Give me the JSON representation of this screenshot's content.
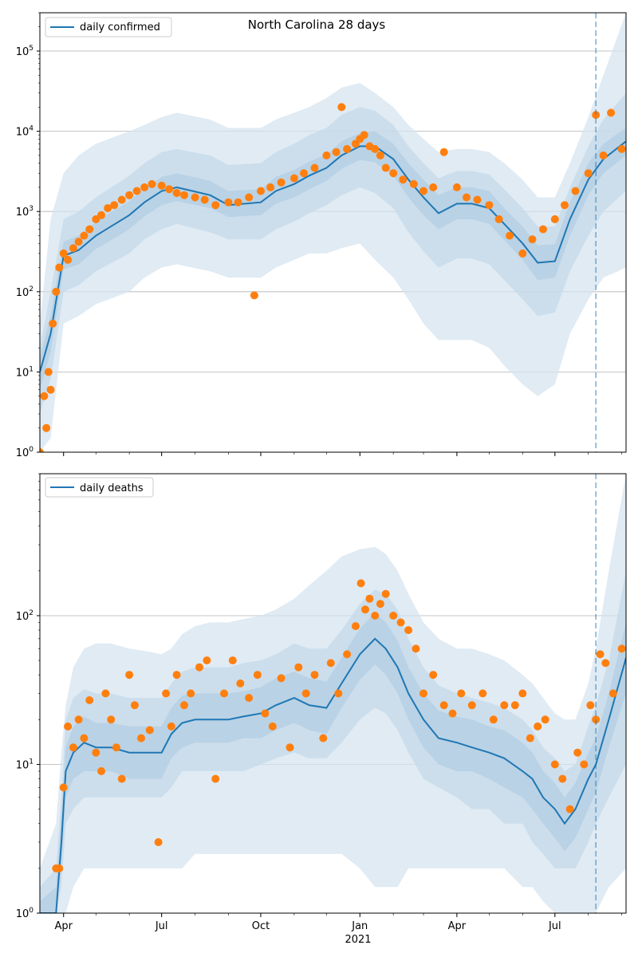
{
  "chart_data": [
    {
      "type": "line",
      "title": "North Carolina 28 days",
      "legend": "daily confirmed",
      "legend_placement": "upper-left",
      "yscale": "log",
      "ylim": [
        1,
        300000
      ],
      "ytick_labels": [
        "10^0",
        "10^1",
        "10^2",
        "10^3",
        "10^4",
        "10^5"
      ],
      "xlim": [
        "2020-03-10",
        "2021-09-05"
      ],
      "xtick_labels": [
        "Apr",
        "Jul",
        "Oct",
        "Jan",
        "Apr",
        "Jul"
      ],
      "xtick_dates": [
        "2020-04-01",
        "2020-07-01",
        "2020-10-01",
        "2021-01-01",
        "2021-04-01",
        "2021-07-01"
      ],
      "year_label": "2021",
      "forecast_start": "2021-08-08",
      "grid": "y-major",
      "model_line": {
        "color": "#1f77b4",
        "dates": [
          "2020-03-10",
          "2020-03-20",
          "2020-04-01",
          "2020-04-15",
          "2020-05-01",
          "2020-06-01",
          "2020-06-15",
          "2020-07-01",
          "2020-07-15",
          "2020-08-15",
          "2020-09-01",
          "2020-10-01",
          "2020-10-15",
          "2020-11-01",
          "2020-11-15",
          "2020-12-01",
          "2020-12-15",
          "2021-01-01",
          "2021-01-15",
          "2021-02-01",
          "2021-02-15",
          "2021-03-01",
          "2021-03-15",
          "2021-04-01",
          "2021-04-15",
          "2021-05-01",
          "2021-05-15",
          "2021-06-01",
          "2021-06-15",
          "2021-07-01",
          "2021-07-15",
          "2021-08-01",
          "2021-08-15",
          "2021-09-05"
        ],
        "values": [
          10,
          30,
          280,
          330,
          500,
          900,
          1300,
          1800,
          2000,
          1600,
          1200,
          1300,
          1800,
          2200,
          2800,
          3500,
          5000,
          6500,
          6500,
          4500,
          2500,
          1500,
          950,
          1250,
          1250,
          1100,
          700,
          400,
          230,
          240,
          800,
          2500,
          4500,
          7500
        ]
      },
      "bands": [
        {
          "name": "outer",
          "color": "#d6e4f0",
          "lower": [
            1,
            1.5,
            40,
            50,
            70,
            100,
            150,
            200,
            220,
            180,
            150,
            150,
            200,
            250,
            300,
            300,
            350,
            400,
            250,
            150,
            80,
            40,
            25,
            25,
            25,
            20,
            12,
            7,
            5,
            7,
            30,
            80,
            150,
            200
          ],
          "upper": [
            40,
            800,
            3000,
            5000,
            7000,
            10000,
            12000,
            15000,
            17000,
            14000,
            11000,
            11000,
            14000,
            17000,
            20000,
            26000,
            35000,
            40000,
            30000,
            20000,
            12000,
            8000,
            5500,
            6000,
            6000,
            5500,
            4000,
            2500,
            1500,
            1500,
            4000,
            15000,
            50000,
            300000
          ]
        },
        {
          "name": "middle",
          "color": "#c6d9ea",
          "lower": [
            3,
            8,
            100,
            120,
            180,
            300,
            450,
            600,
            700,
            550,
            450,
            450,
            600,
            750,
            950,
            1200,
            1600,
            2000,
            1700,
            1100,
            550,
            320,
            200,
            260,
            260,
            220,
            140,
            80,
            50,
            55,
            180,
            500,
            1000,
            1800
          ],
          "upper": [
            20,
            100,
            800,
            1000,
            1500,
            2800,
            4000,
            5500,
            6000,
            5000,
            3800,
            4000,
            5500,
            7000,
            9000,
            11000,
            16000,
            20000,
            18000,
            12000,
            6500,
            4000,
            2600,
            3200,
            3200,
            2900,
            1900,
            1100,
            650,
            650,
            2000,
            6500,
            14000,
            30000
          ]
        },
        {
          "name": "inner",
          "color": "#b3cde3",
          "lower": [
            6,
            18,
            190,
            220,
            340,
            600,
            870,
            1200,
            1350,
            1100,
            850,
            900,
            1250,
            1500,
            1900,
            2400,
            3400,
            4400,
            4100,
            2800,
            1500,
            900,
            600,
            800,
            800,
            700,
            440,
            250,
            140,
            150,
            500,
            1600,
            3000,
            5000
          ],
          "upper": [
            15,
            50,
            420,
            500,
            750,
            1350,
            1950,
            2700,
            3000,
            2400,
            1800,
            1900,
            2700,
            3300,
            4200,
            5100,
            7500,
            9500,
            10000,
            7000,
            4000,
            2500,
            1600,
            2000,
            2000,
            1800,
            1100,
            650,
            380,
            390,
            1300,
            4000,
            7000,
            11000
          ]
        }
      ],
      "observed_points": {
        "color": "#ff7f0e",
        "dates": [
          "2020-03-10",
          "2020-03-14",
          "2020-03-16",
          "2020-03-18",
          "2020-03-20",
          "2020-03-22",
          "2020-03-25",
          "2020-03-28",
          "2020-04-01",
          "2020-04-05",
          "2020-04-10",
          "2020-04-15",
          "2020-04-20",
          "2020-04-25",
          "2020-05-01",
          "2020-05-06",
          "2020-05-12",
          "2020-05-18",
          "2020-05-25",
          "2020-06-01",
          "2020-06-08",
          "2020-06-15",
          "2020-06-22",
          "2020-07-01",
          "2020-07-08",
          "2020-07-15",
          "2020-07-22",
          "2020-08-01",
          "2020-08-10",
          "2020-08-20",
          "2020-09-01",
          "2020-09-10",
          "2020-09-20",
          "2020-09-25",
          "2020-10-01",
          "2020-10-10",
          "2020-10-20",
          "2020-11-01",
          "2020-11-10",
          "2020-11-20",
          "2020-12-01",
          "2020-12-10",
          "2020-12-15",
          "2020-12-20",
          "2020-12-28",
          "2021-01-01",
          "2021-01-05",
          "2021-01-10",
          "2021-01-15",
          "2021-01-20",
          "2021-01-25",
          "2021-02-01",
          "2021-02-10",
          "2021-02-20",
          "2021-03-01",
          "2021-03-10",
          "2021-03-20",
          "2021-04-01",
          "2021-04-10",
          "2021-04-20",
          "2021-05-01",
          "2021-05-10",
          "2021-05-20",
          "2021-06-01",
          "2021-06-10",
          "2021-06-20",
          "2021-07-01",
          "2021-07-10",
          "2021-07-20",
          "2021-08-01",
          "2021-08-08",
          "2021-08-15",
          "2021-08-22",
          "2021-09-01"
        ],
        "values": [
          1,
          5,
          2,
          10,
          6,
          40,
          100,
          200,
          300,
          250,
          350,
          420,
          500,
          600,
          800,
          900,
          1100,
          1200,
          1400,
          1600,
          1800,
          2000,
          2200,
          2100,
          1900,
          1700,
          1600,
          1500,
          1400,
          1200,
          1300,
          1300,
          1500,
          90,
          1800,
          2000,
          2300,
          2600,
          3000,
          3500,
          5000,
          5500,
          20000,
          6000,
          7000,
          8000,
          9000,
          6500,
          6000,
          5000,
          3500,
          3000,
          2500,
          2200,
          1800,
          2000,
          5500,
          2000,
          1500,
          1400,
          1200,
          800,
          500,
          300,
          450,
          600,
          800,
          1200,
          1800,
          3000,
          16000,
          5000,
          17000,
          6000
        ]
      }
    },
    {
      "type": "line",
      "title": "",
      "legend": "daily deaths",
      "legend_placement": "upper-left",
      "yscale": "log",
      "ylim": [
        1,
        900
      ],
      "ytick_labels": [
        "10^0",
        "10^1",
        "10^2"
      ],
      "xlim": [
        "2020-03-10",
        "2021-09-05"
      ],
      "xtick_labels": [
        "Apr",
        "Jul",
        "Oct",
        "Jan",
        "Apr",
        "Jul"
      ],
      "xtick_dates": [
        "2020-04-01",
        "2020-07-01",
        "2020-10-01",
        "2021-01-01",
        "2021-04-01",
        "2021-07-01"
      ],
      "year_label": "2021",
      "forecast_start": "2021-08-08",
      "grid": "y-major",
      "model_line": {
        "color": "#1f77b4",
        "dates": [
          "2020-03-10",
          "2020-03-25",
          "2020-03-30",
          "2020-04-03",
          "2020-04-10",
          "2020-04-20",
          "2020-05-01",
          "2020-05-15",
          "2020-06-01",
          "2020-06-15",
          "2020-07-01",
          "2020-07-10",
          "2020-07-20",
          "2020-08-01",
          "2020-08-15",
          "2020-09-01",
          "2020-09-15",
          "2020-10-01",
          "2020-10-15",
          "2020-11-01",
          "2020-11-15",
          "2020-12-01",
          "2020-12-15",
          "2021-01-01",
          "2021-01-15",
          "2021-01-25",
          "2021-02-05",
          "2021-02-15",
          "2021-03-01",
          "2021-03-15",
          "2021-04-01",
          "2021-04-15",
          "2021-05-01",
          "2021-05-15",
          "2021-06-01",
          "2021-06-10",
          "2021-06-20",
          "2021-07-01",
          "2021-07-10",
          "2021-07-20",
          "2021-08-01",
          "2021-08-08",
          "2021-08-20",
          "2021-09-05"
        ],
        "values": [
          1,
          1,
          3,
          9,
          12,
          14,
          13,
          13,
          12,
          12,
          12,
          16,
          19,
          20,
          20,
          20,
          21,
          22,
          25,
          28,
          25,
          24,
          35,
          55,
          70,
          60,
          45,
          30,
          20,
          15,
          14,
          13,
          12,
          11,
          9,
          8,
          6,
          5,
          4,
          5,
          8,
          10,
          20,
          52
        ]
      },
      "bands": [
        {
          "name": "outer",
          "color": "#d6e4f0",
          "lower": [
            1,
            1,
            1,
            1,
            1.5,
            2,
            2,
            2,
            2,
            2,
            2,
            2,
            2,
            2.5,
            2.5,
            2.5,
            2.5,
            2.5,
            2.5,
            2.5,
            2.5,
            2.5,
            2.5,
            2,
            1.5,
            1.5,
            1.5,
            2,
            2,
            2,
            2,
            2,
            2,
            2,
            1.5,
            1.5,
            1.2,
            1,
            1,
            1,
            1,
            1,
            1.5,
            2
          ],
          "upper": [
            2,
            4,
            12,
            25,
            45,
            60,
            65,
            65,
            60,
            58,
            55,
            60,
            75,
            85,
            90,
            90,
            95,
            100,
            110,
            130,
            160,
            200,
            250,
            280,
            290,
            260,
            200,
            140,
            90,
            70,
            60,
            60,
            55,
            50,
            40,
            35,
            28,
            22,
            20,
            20,
            35,
            60,
            200,
            900
          ]
        },
        {
          "name": "middle",
          "color": "#c6d9ea",
          "lower": [
            1,
            1,
            1.5,
            4,
            5,
            6,
            6,
            6,
            6,
            6,
            6,
            7,
            9,
            9,
            9,
            9,
            9,
            10,
            11,
            12,
            11,
            11,
            14,
            20,
            24,
            22,
            17,
            12,
            8,
            7,
            6,
            5,
            5,
            4,
            4,
            3,
            2.5,
            2,
            2,
            2,
            3,
            4,
            6,
            10
          ],
          "upper": [
            1.5,
            2,
            6,
            20,
            28,
            32,
            30,
            30,
            28,
            28,
            28,
            35,
            42,
            45,
            45,
            45,
            48,
            50,
            55,
            65,
            60,
            60,
            80,
            120,
            150,
            140,
            110,
            70,
            45,
            34,
            30,
            28,
            26,
            24,
            20,
            17,
            13,
            11,
            9,
            10,
            18,
            25,
            50,
            200
          ]
        },
        {
          "name": "inner",
          "color": "#b3cde3",
          "lower": [
            1,
            1,
            2,
            6,
            8,
            9,
            9,
            9,
            8,
            8,
            8,
            11,
            13,
            14,
            14,
            14,
            15,
            15,
            17,
            19,
            17,
            16,
            24,
            37,
            47,
            40,
            30,
            20,
            13,
            10,
            9,
            9,
            8,
            7,
            6,
            5,
            4,
            3.2,
            2.6,
            3.2,
            5,
            6.5,
            13,
            30
          ],
          "upper": [
            1.2,
            1.5,
            4.5,
            13,
            18,
            21,
            19,
            19,
            18,
            18,
            18,
            24,
            29,
            30,
            30,
            30,
            31,
            33,
            38,
            42,
            38,
            36,
            52,
            82,
            105,
            90,
            68,
            45,
            30,
            23,
            21,
            20,
            18,
            17,
            14,
            12,
            9,
            7.5,
            6,
            7.5,
            12,
            15,
            30,
            90
          ]
        }
      ],
      "observed_points": {
        "color": "#ff7f0e",
        "dates": [
          "2020-03-25",
          "2020-03-28",
          "2020-04-01",
          "2020-04-05",
          "2020-04-10",
          "2020-04-15",
          "2020-04-20",
          "2020-04-25",
          "2020-05-01",
          "2020-05-06",
          "2020-05-10",
          "2020-05-15",
          "2020-05-20",
          "2020-05-25",
          "2020-06-01",
          "2020-06-06",
          "2020-06-12",
          "2020-06-20",
          "2020-06-28",
          "2020-07-05",
          "2020-07-10",
          "2020-07-15",
          "2020-07-22",
          "2020-07-28",
          "2020-08-05",
          "2020-08-12",
          "2020-08-20",
          "2020-08-28",
          "2020-09-05",
          "2020-09-12",
          "2020-09-20",
          "2020-09-28",
          "2020-10-05",
          "2020-10-12",
          "2020-10-20",
          "2020-10-28",
          "2020-11-05",
          "2020-11-12",
          "2020-11-20",
          "2020-11-28",
          "2020-12-05",
          "2020-12-12",
          "2020-12-20",
          "2020-12-28",
          "2021-01-02",
          "2021-01-06",
          "2021-01-10",
          "2021-01-15",
          "2021-01-20",
          "2021-01-25",
          "2021-02-01",
          "2021-02-08",
          "2021-02-15",
          "2021-02-22",
          "2021-03-01",
          "2021-03-10",
          "2021-03-20",
          "2021-03-28",
          "2021-04-05",
          "2021-04-15",
          "2021-04-25",
          "2021-05-05",
          "2021-05-15",
          "2021-05-25",
          "2021-06-01",
          "2021-06-08",
          "2021-06-15",
          "2021-06-22",
          "2021-07-01",
          "2021-07-08",
          "2021-07-15",
          "2021-07-22",
          "2021-07-28",
          "2021-08-03",
          "2021-08-08",
          "2021-08-12",
          "2021-08-17",
          "2021-08-24",
          "2021-09-01"
        ],
        "values": [
          2,
          2,
          7,
          18,
          13,
          20,
          15,
          27,
          12,
          9,
          30,
          20,
          13,
          8,
          40,
          25,
          15,
          17,
          3,
          30,
          18,
          40,
          25,
          30,
          45,
          50,
          8,
          30,
          50,
          35,
          28,
          40,
          22,
          18,
          38,
          13,
          45,
          30,
          40,
          15,
          48,
          30,
          55,
          85,
          165,
          110,
          130,
          100,
          120,
          140,
          100,
          90,
          80,
          60,
          30,
          40,
          25,
          22,
          30,
          25,
          30,
          20,
          25,
          25,
          30,
          15,
          18,
          20,
          10,
          8,
          5,
          12,
          10,
          25,
          20,
          55,
          48,
          30,
          60
        ]
      }
    }
  ]
}
